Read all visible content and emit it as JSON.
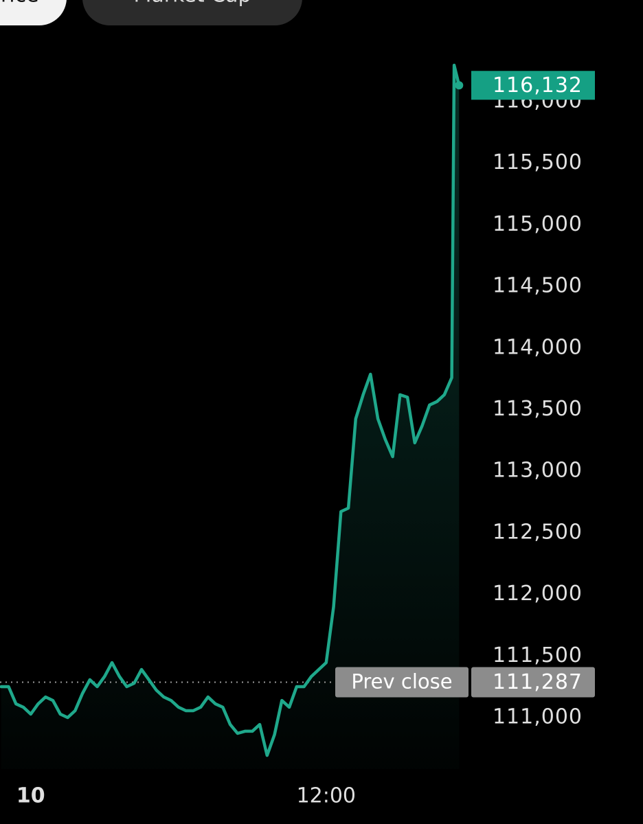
{
  "tabs": [
    "Price",
    "Market Cap"
  ],
  "chart_data": {
    "type": "line",
    "x": [
      588,
      591,
      594,
      597,
      600,
      603,
      606,
      609,
      612,
      615,
      618,
      621,
      624,
      627,
      630,
      633,
      636,
      639,
      642,
      645,
      648,
      651,
      654,
      657,
      660,
      663,
      666,
      669,
      672,
      675,
      678,
      681,
      684,
      687,
      690,
      693,
      696,
      699,
      702,
      705,
      708,
      711,
      714,
      717,
      720,
      723,
      726,
      729,
      732,
      735,
      738,
      741,
      744,
      747,
      750,
      753,
      756,
      759,
      762,
      765,
      768,
      771,
      772,
      774
    ],
    "series": [
      {
        "color": "#1fa88b",
        "values": [
          111251,
          111251,
          111111,
          111084,
          111028,
          111111,
          111167,
          111139,
          111028,
          111000,
          111056,
          111195,
          111307,
          111251,
          111334,
          111446,
          111334,
          111251,
          111279,
          111390,
          111307,
          111223,
          111167,
          111139,
          111084,
          111056,
          111056,
          111084,
          111167,
          111111,
          111084,
          110944,
          110872,
          110889,
          110889,
          110944,
          110693,
          110861,
          111139,
          111084,
          111251,
          111251,
          111334,
          111390,
          111446,
          111900,
          112672,
          112700,
          113425,
          113620,
          113787,
          113425,
          113258,
          113118,
          113620,
          113600,
          113230,
          113370,
          113537,
          113565,
          113620,
          113759,
          116295,
          116132
        ],
        "value_labels": [
          null,
          null,
          null,
          null,
          null,
          null,
          null,
          null,
          null,
          null,
          null,
          null,
          null,
          null,
          null,
          null,
          null,
          null,
          null,
          null,
          null,
          null,
          null,
          null,
          null,
          null,
          null,
          null,
          null,
          null,
          null,
          null,
          null,
          null,
          null,
          null,
          null,
          null,
          null,
          null,
          null,
          null,
          null,
          null,
          null,
          null,
          null,
          null,
          null,
          null,
          null,
          null,
          null,
          null,
          null,
          null,
          null,
          null,
          null,
          null,
          null,
          null,
          null,
          "116,132"
        ]
      }
    ],
    "xlim": [
      587.5,
      848.7
    ],
    "xticks": [
      {
        "value": 600,
        "label": "10"
      },
      {
        "value": 720,
        "label": "12:00"
      }
    ],
    "ylim": [
      110582,
      116323
    ],
    "yticks": [
      {
        "value": 111000,
        "label": "111,000"
      },
      {
        "value": 111500,
        "label": "111,500"
      },
      {
        "value": 112000,
        "label": "112,000"
      },
      {
        "value": 112500,
        "label": "112,500"
      },
      {
        "value": 113000,
        "label": "113,000"
      },
      {
        "value": 113500,
        "label": "113,500"
      },
      {
        "value": 114000,
        "label": "114,000"
      },
      {
        "value": 114500,
        "label": "114,500"
      },
      {
        "value": 115000,
        "label": "115,000"
      },
      {
        "value": 115500,
        "label": "115,500"
      },
      {
        "value": 116000,
        "label": "116,000"
      }
    ],
    "reference_line": {
      "label": "Prev close",
      "value": 111287,
      "value_label": "111,287"
    }
  }
}
